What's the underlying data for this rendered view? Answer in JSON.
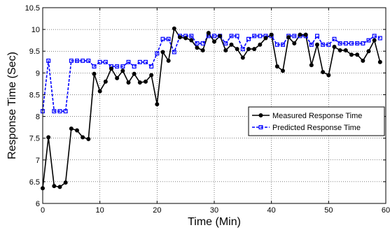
{
  "chart_data": {
    "type": "line",
    "xlabel": "Time (Min)",
    "ylabel": "Response Time (Sec)",
    "xlim": [
      0,
      60
    ],
    "ylim": [
      6,
      10.5
    ],
    "x_ticks": [
      "0",
      "10",
      "20",
      "30",
      "40",
      "50",
      "60"
    ],
    "y_ticks": [
      "6",
      "6.5",
      "7",
      "7.5",
      "8",
      "8.5",
      "9",
      "9.5",
      "10",
      "10.5"
    ],
    "grid": true,
    "legend_position": "middle-right",
    "x": [
      0,
      1,
      2,
      3,
      4,
      5,
      6,
      7,
      8,
      9,
      10,
      11,
      12,
      13,
      14,
      15,
      16,
      17,
      18,
      19,
      20,
      21,
      22,
      23,
      24,
      25,
      26,
      27,
      28,
      29,
      30,
      31,
      32,
      33,
      34,
      35,
      36,
      37,
      38,
      39,
      40,
      41,
      42,
      43,
      44,
      45,
      46,
      47,
      48,
      49,
      50,
      51,
      52,
      53,
      54,
      55,
      56,
      57,
      58,
      59
    ],
    "series": [
      {
        "name": "Measured Response Time",
        "color": "#000000",
        "marker": "circle",
        "line_style": "solid",
        "values": [
          6.35,
          7.52,
          6.4,
          6.38,
          6.48,
          7.72,
          7.68,
          7.52,
          7.48,
          8.98,
          8.58,
          8.8,
          9.1,
          8.88,
          9.05,
          8.78,
          8.98,
          8.78,
          8.8,
          8.95,
          8.28,
          9.48,
          9.28,
          10.02,
          9.82,
          9.8,
          9.75,
          9.58,
          9.52,
          9.92,
          9.72,
          9.85,
          9.52,
          9.65,
          9.55,
          9.35,
          9.55,
          9.55,
          9.65,
          9.8,
          9.88,
          9.15,
          9.05,
          9.82,
          9.68,
          9.88,
          9.88,
          9.18,
          9.65,
          9.02,
          8.95,
          9.6,
          9.52,
          9.52,
          9.42,
          9.42,
          9.28,
          9.5,
          9.75,
          9.25
        ]
      },
      {
        "name": "Predicted Response Time",
        "color": "#0000ff",
        "marker": "square",
        "line_style": "dashed",
        "values": [
          8.12,
          9.28,
          8.12,
          8.12,
          8.12,
          9.28,
          9.28,
          9.28,
          9.28,
          9.15,
          9.25,
          9.25,
          9.15,
          9.15,
          9.15,
          9.25,
          9.15,
          9.25,
          9.25,
          9.15,
          9.45,
          9.78,
          9.78,
          9.48,
          9.85,
          9.85,
          9.85,
          9.68,
          9.68,
          9.85,
          9.85,
          9.85,
          9.68,
          9.85,
          9.85,
          9.55,
          9.78,
          9.85,
          9.85,
          9.85,
          9.85,
          9.65,
          9.65,
          9.85,
          9.85,
          9.85,
          9.85,
          9.65,
          9.85,
          9.65,
          9.65,
          9.78,
          9.68,
          9.68,
          9.68,
          9.68,
          9.68,
          9.75,
          9.85,
          9.8
        ]
      }
    ]
  }
}
